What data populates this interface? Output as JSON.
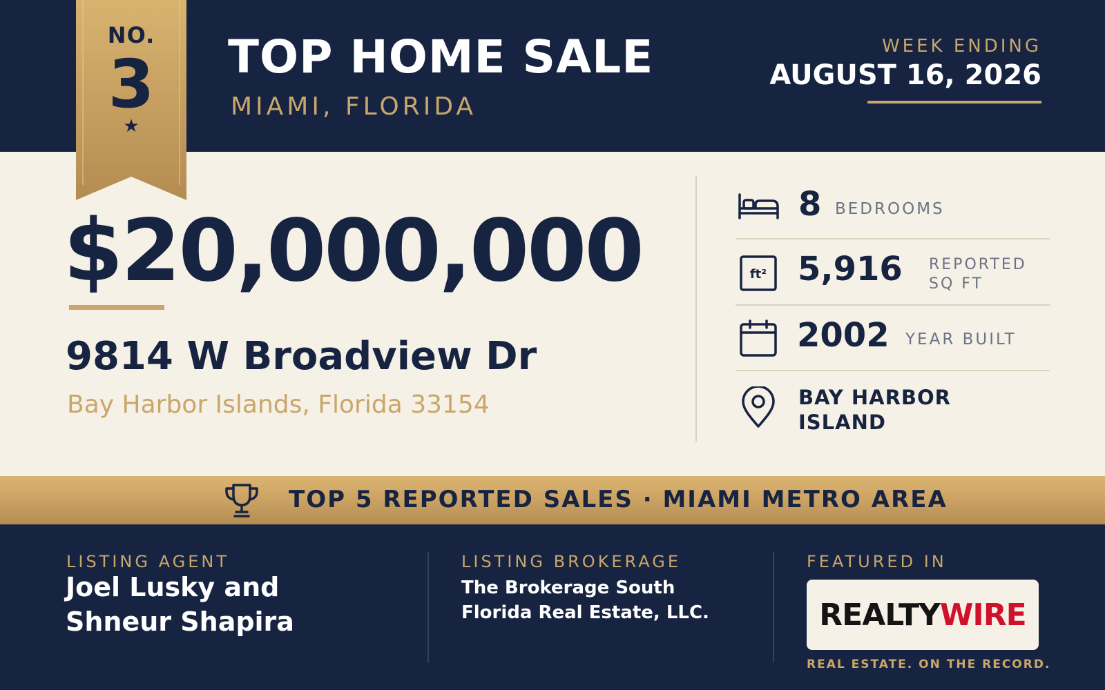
{
  "header": {
    "rank_prefix": "NO.",
    "rank_number": "3",
    "rank_star": "★",
    "title": "TOP HOME SALE",
    "subtitle": "MIAMI, FLORIDA",
    "week_label": "WEEK ENDING",
    "week_date": "AUGUST 16, 2026"
  },
  "property": {
    "price": "$20,000,000",
    "address": "9814 W Broadview Dr",
    "city_line": "Bay Harbor Islands, Florida 33154"
  },
  "stats": {
    "bedrooms": {
      "value": "8",
      "label": "BEDROOMS",
      "icon": "bed-icon"
    },
    "sqft": {
      "value": "5,916",
      "label_line1": "REPORTED",
      "label_line2": "SQ FT",
      "icon": "square-feet-icon",
      "icon_text": "ft²"
    },
    "year": {
      "value": "2002",
      "label": "YEAR BUILT",
      "icon": "calendar-icon"
    },
    "location": {
      "line1": "BAY HARBOR",
      "line2": "ISLAND",
      "icon": "map-pin-icon"
    }
  },
  "band": {
    "text": "TOP 5 REPORTED SALES · MIAMI METRO AREA",
    "icon": "trophy-icon"
  },
  "footer": {
    "agent_label": "LISTING AGENT",
    "agent_line1": "Joel Lusky and",
    "agent_line2": "Shneur Shapira",
    "brokerage_label": "LISTING BROKERAGE",
    "brokerage_line1": "The Brokerage South",
    "brokerage_line2": "Florida Real Estate, LLC.",
    "featured_label": "FEATURED IN",
    "logo_part1": "REALTY",
    "logo_part2": "WIRE",
    "tagline": "REAL ESTATE. ON THE RECORD."
  },
  "colors": {
    "navy": "#172441",
    "gold": "#c9a66b",
    "cream": "#f6f1e6",
    "logo_red": "#d0112b"
  }
}
